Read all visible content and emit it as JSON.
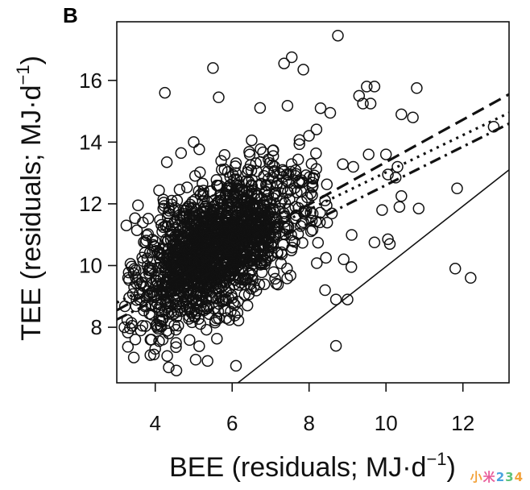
{
  "figure": {
    "panel_label": "B",
    "watermark": "小米234"
  },
  "colors": {
    "ink": "#111111",
    "background": "#ffffff"
  },
  "chart_data": {
    "type": "scatter",
    "title": "",
    "xlabel": "BEE (residuals; MJ·d",
    "xlabel_sup": "−1",
    "xlabel_close": ")",
    "ylabel": "TEE (residuals; MJ·d",
    "ylabel_sup": "−1",
    "ylabel_close": ")",
    "xlim": [
      3.0,
      13.2
    ],
    "ylim": [
      6.2,
      17.9
    ],
    "x_ticks": [
      4,
      6,
      8,
      10,
      12
    ],
    "x_tick_labels": [
      "4",
      "6",
      "8",
      "10",
      "12"
    ],
    "y_ticks": [
      8,
      10,
      12,
      14,
      16
    ],
    "y_tick_labels": [
      "8",
      "10",
      "12",
      "14",
      "16"
    ],
    "grid": false,
    "marker": "open-circle",
    "cloud": {
      "approx_n": 1600,
      "center": [
        5.6,
        10.6
      ],
      "sd": [
        1.1,
        1.25
      ],
      "correlation": 0.55,
      "seed": 7
    },
    "points": [
      [
        8.75,
        17.45
      ],
      [
        7.55,
        16.75
      ],
      [
        7.35,
        16.55
      ],
      [
        5.5,
        16.4
      ],
      [
        7.85,
        16.35
      ],
      [
        9.5,
        15.8
      ],
      [
        9.7,
        15.8
      ],
      [
        10.8,
        15.75
      ],
      [
        4.25,
        15.6
      ],
      [
        9.3,
        15.5
      ],
      [
        5.65,
        15.45
      ],
      [
        9.4,
        15.25
      ],
      [
        9.6,
        15.25
      ],
      [
        8.3,
        15.1
      ],
      [
        8.55,
        14.95
      ],
      [
        10.4,
        14.9
      ],
      [
        10.7,
        14.8
      ],
      [
        12.8,
        14.5
      ],
      [
        5.0,
        14.0
      ],
      [
        9.55,
        13.6
      ],
      [
        10.0,
        13.6
      ],
      [
        9.15,
        13.2
      ],
      [
        4.3,
        13.35
      ],
      [
        10.3,
        13.2
      ],
      [
        10.05,
        12.95
      ],
      [
        10.25,
        12.85
      ],
      [
        10.4,
        12.25
      ],
      [
        3.55,
        11.95
      ],
      [
        10.35,
        11.9
      ],
      [
        9.9,
        11.8
      ],
      [
        10.85,
        11.85
      ],
      [
        11.85,
        12.5
      ],
      [
        3.25,
        11.3
      ],
      [
        10.05,
        10.85
      ],
      [
        10.1,
        10.7
      ],
      [
        9.7,
        10.75
      ],
      [
        11.8,
        9.9
      ],
      [
        12.2,
        9.6
      ],
      [
        3.65,
        9.45
      ],
      [
        3.45,
        9.3
      ],
      [
        3.2,
        8.0
      ],
      [
        3.4,
        8.05
      ],
      [
        8.7,
        8.9
      ],
      [
        9.0,
        8.9
      ],
      [
        8.7,
        7.4
      ],
      [
        4.35,
        6.7
      ],
      [
        4.55,
        6.6
      ],
      [
        6.1,
        6.75
      ],
      [
        5.05,
        6.95
      ],
      [
        4.1,
        7.55
      ],
      [
        4.0,
        7.3
      ],
      [
        3.9,
        7.6
      ],
      [
        4.35,
        7.8
      ],
      [
        9.1,
        9.95
      ],
      [
        8.9,
        10.2
      ]
    ],
    "series": [
      {
        "name": "identity",
        "style": "solid",
        "x": [
          6.15,
          13.2
        ],
        "y": [
          6.2,
          13.1
        ]
      },
      {
        "name": "fit-dashed",
        "style": "dashed",
        "x": [
          3.0,
          13.2
        ],
        "y": [
          8.55,
          15.55
        ]
      },
      {
        "name": "fit-dotted",
        "style": "dotted",
        "x": [
          3.0,
          13.2
        ],
        "y": [
          8.8,
          14.95
        ]
      },
      {
        "name": "fit-dotdash",
        "style": "dotdash",
        "x": [
          3.0,
          13.2
        ],
        "y": [
          8.25,
          14.6
        ]
      }
    ]
  }
}
